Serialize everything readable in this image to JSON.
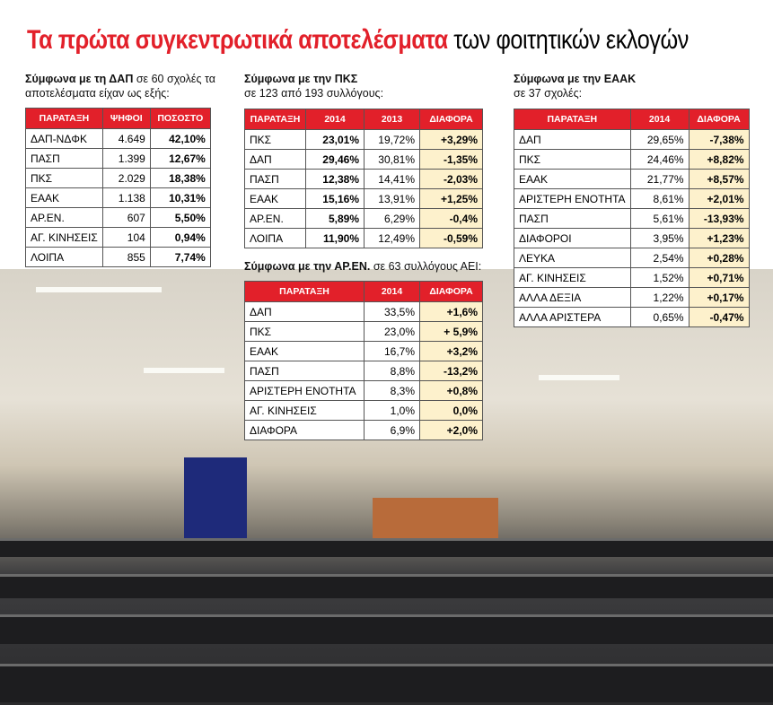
{
  "title": {
    "highlight": "Τα πρώτα συγκεντρωτικά αποτελέσματα",
    "rest": "των φοιτητικών εκλογών"
  },
  "tables": [
    {
      "caption": {
        "bold": "Σύμφωνα με τη ΔΑΠ",
        "rest": "σε 60 σχολές τα αποτελέσματα είχαν ως εξής:"
      },
      "headers": [
        "ΠΑΡΑΤΑΞΗ",
        "ΨΗΦΟΙ",
        "ΠΟΣΟΣΤΟ"
      ],
      "rows": [
        [
          "ΔΑΠ-ΝΔΦΚ",
          "4.649",
          "42,10%"
        ],
        [
          "ΠΑΣΠ",
          "1.399",
          "12,67%"
        ],
        [
          "ΠΚΣ",
          "2.029",
          "18,38%"
        ],
        [
          "ΕΑΑΚ",
          "1.138",
          "10,31%"
        ],
        [
          "ΑΡ.ΕΝ.",
          "607",
          "5,50%"
        ],
        [
          "ΑΓ. ΚΙΝΗΣΕΙΣ",
          "104",
          "0,94%"
        ],
        [
          "ΛΟΙΠΑ",
          "855",
          "7,74%"
        ]
      ]
    },
    {
      "caption": {
        "bold": "Σύμφωνα με την ΠΚΣ",
        "rest": "σε 123 από 193 συλλόγους:"
      },
      "headers": [
        "ΠΑΡΑΤΑΞΗ",
        "2014",
        "2013",
        "ΔΙΑΦΟΡΑ"
      ],
      "rows": [
        [
          "ΠΚΣ",
          "23,01%",
          "19,72%",
          "+3,29%"
        ],
        [
          "ΔΑΠ",
          "29,46%",
          "30,81%",
          "-1,35%"
        ],
        [
          "ΠΑΣΠ",
          "12,38%",
          "14,41%",
          "-2,03%"
        ],
        [
          "ΕΑΑΚ",
          "15,16%",
          "13,91%",
          "+1,25%"
        ],
        [
          "ΑΡ.ΕΝ.",
          "5,89%",
          "6,29%",
          "-0,4%"
        ],
        [
          "ΛΟΙΠΑ",
          "11,90%",
          "12,49%",
          "-0,59%"
        ]
      ]
    },
    {
      "caption": {
        "bold": "Σύμφωνα με την ΑΡ.ΕΝ.",
        "rest": "σε 63 συλλόγους ΑΕΙ:"
      },
      "headers": [
        "ΠΑΡΑΤΑΞΗ",
        "2014",
        "ΔΙΑΦΟΡΑ"
      ],
      "rows": [
        [
          "ΔΑΠ",
          "33,5%",
          "+1,6%"
        ],
        [
          "ΠΚΣ",
          "23,0%",
          "+ 5,9%"
        ],
        [
          "ΕΑΑΚ",
          "16,7%",
          "+3,2%"
        ],
        [
          "ΠΑΣΠ",
          "8,8%",
          "-13,2%"
        ],
        [
          "ΑΡΙΣΤΕΡΗ ΕΝΟΤΗΤΑ",
          "8,3%",
          "+0,8%"
        ],
        [
          "ΑΓ. ΚΙΝΗΣΕΙΣ",
          "1,0%",
          "0,0%"
        ],
        [
          "ΔΙΑΦΟΡΑ",
          "6,9%",
          "+2,0%"
        ]
      ]
    },
    {
      "caption": {
        "bold": "Σύμφωνα με την ΕΑΑΚ",
        "rest": "σε 37 σχολές:"
      },
      "headers": [
        "ΠΑΡΑΤΑΞΗ",
        "2014",
        "ΔΙΑΦΟΡΑ"
      ],
      "rows": [
        [
          "ΔΑΠ",
          "29,65%",
          "-7,38%"
        ],
        [
          "ΠΚΣ",
          "24,46%",
          "+8,82%"
        ],
        [
          "ΕΑΑΚ",
          "21,77%",
          "+8,57%"
        ],
        [
          "ΑΡΙΣΤΕΡΗ ΕΝΟΤΗΤΑ",
          "8,61%",
          "+2,01%"
        ],
        [
          "ΠΑΣΠ",
          "5,61%",
          "-13,93%"
        ],
        [
          "ΔΙΑΦΟΡΟΙ",
          "3,95%",
          "+1,23%"
        ],
        [
          "ΛΕΥΚΑ",
          "2,54%",
          "+0,28%"
        ],
        [
          "ΑΓ. ΚΙΝΗΣΕΙΣ",
          "1,52%",
          "+0,71%"
        ],
        [
          "ΑΛΛΑ ΔΕΞΙΑ",
          "1,22%",
          "+0,17%"
        ],
        [
          "ΑΛΛΑ ΑΡΙΣΤΕΡΑ",
          "0,65%",
          "-0,47%"
        ]
      ]
    }
  ]
}
